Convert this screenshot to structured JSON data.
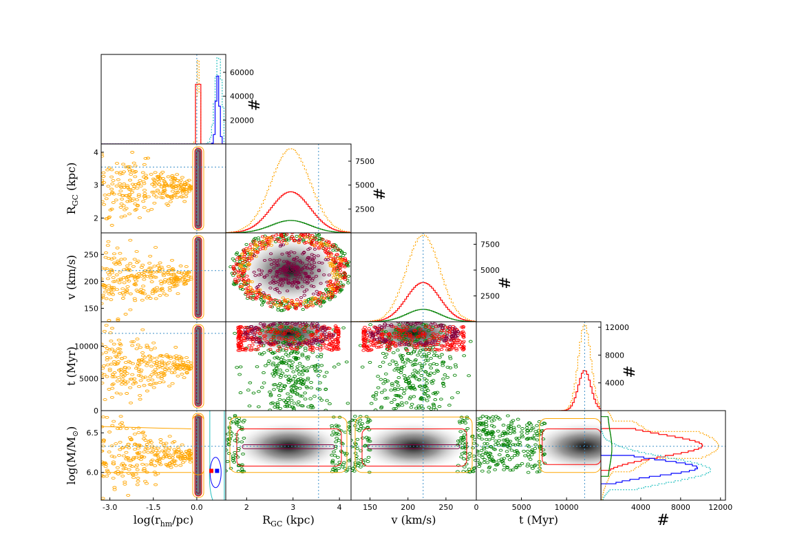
{
  "chart_data": {
    "type": "corner",
    "title": "",
    "parameters": [
      {
        "key": "logr",
        "label_main": "log(r",
        "label_sub": "hm",
        "label_tail": "/pc)",
        "range": [
          -3.3,
          1.0
        ],
        "ticks": [
          "-3.0",
          "-1.5",
          "0.0"
        ],
        "tick_values": [
          -3.0,
          -1.5,
          0.0
        ],
        "truth": 0.0
      },
      {
        "key": "rgc",
        "label_main": "R",
        "label_sub": "GC",
        "label_tail": " (kpc)",
        "range": [
          1.55,
          4.25
        ],
        "ticks": [
          "2",
          "3",
          "4"
        ],
        "tick_values": [
          2,
          3,
          4
        ],
        "truth": 3.55
      },
      {
        "key": "v",
        "label_main": "v (km/s)",
        "label_sub": "",
        "label_tail": "",
        "range": [
          125,
          290
        ],
        "ticks": [
          "150",
          "200",
          "250"
        ],
        "tick_values": [
          150,
          200,
          250
        ],
        "truth": 220
      },
      {
        "key": "t",
        "label_main": "t (Myr)",
        "label_sub": "",
        "label_tail": "",
        "range": [
          0,
          13800
        ],
        "ticks": [
          "0",
          "5000",
          "10000"
        ],
        "tick_values": [
          0,
          5000,
          10000
        ],
        "truth": 12000
      },
      {
        "key": "logm",
        "label_main": "log(M/M",
        "label_sub": "⊙",
        "label_tail": ")",
        "range": [
          5.65,
          6.78
        ],
        "ticks": [
          "6.0",
          "6.5"
        ],
        "tick_values": [
          6.0,
          6.5
        ],
        "truth": 6.33
      }
    ],
    "hist_axis_label": "#",
    "hist_ticks": {
      "logr": [
        "20000",
        "40000",
        "60000"
      ],
      "rgc": [
        "2500",
        "5000",
        "7500"
      ],
      "v": [
        "2500",
        "5000",
        "7500"
      ],
      "t": [
        "4000",
        "8000",
        "12000"
      ],
      "logm": [
        "4000",
        "8000",
        "12000"
      ]
    },
    "hist_tick_values": {
      "logr": [
        20000,
        40000,
        60000
      ],
      "rgc": [
        2500,
        5000,
        7500
      ],
      "v": [
        2500,
        5000,
        7500
      ],
      "t": [
        4000,
        8000,
        12000
      ],
      "logm": [
        4000,
        8000,
        12000
      ]
    },
    "hist_max": {
      "logr": 75000,
      "rgc": 9300,
      "v": 8600,
      "t": 12800,
      "logm": 12500
    },
    "series": [
      {
        "name": "orange dotted",
        "color": "#ffa500"
      },
      {
        "name": "red",
        "color": "#ff0000"
      },
      {
        "name": "green",
        "color": "#008000"
      },
      {
        "name": "cyan dotted",
        "color": "#20c0c0"
      },
      {
        "name": "blue",
        "color": "#0000ff"
      }
    ],
    "histograms": {
      "rgc": {
        "center": 2.95,
        "sigma": 0.42,
        "peaks": {
          "orange": 8800,
          "red": 4300,
          "green": 1300
        }
      },
      "v": {
        "center": 220,
        "sigma": 22,
        "peaks": {
          "orange": 8400,
          "red": 3800,
          "green": 1200
        }
      },
      "t": {
        "center": 12000,
        "sigma": 700,
        "peaks": {
          "orange": 12400,
          "red": 5800
        }
      },
      "logm": {
        "red_peak": 10200,
        "blue_peak": 9700,
        "orange_peak": 11800,
        "cyan_peak": 11000,
        "green_peak": 1100
      },
      "logr": {
        "red_peak": 50000,
        "blue_peak": 57000,
        "orange_peak": 70000,
        "cyan_peak": 74000
      }
    },
    "point_markers": [
      {
        "label": "red square",
        "color": "#ff0000",
        "logr": 0.5,
        "logm": 6.02
      },
      {
        "label": "blue square",
        "color": "#0000ff",
        "logr": 0.7,
        "logm": 6.02
      }
    ]
  }
}
